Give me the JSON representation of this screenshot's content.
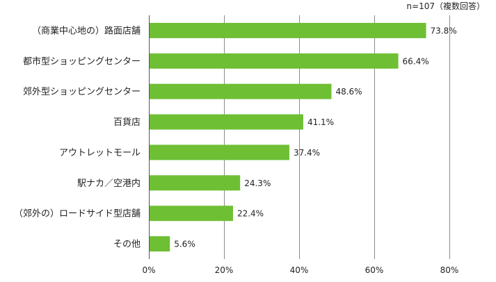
{
  "note": "n=107（複数回答）",
  "chart_data": {
    "type": "bar",
    "orientation": "horizontal",
    "categories": [
      "（商業中心地の）路面店舗",
      "都市型ショッピングセンター",
      "郊外型ショッピングセンター",
      "百貨店",
      "アウトレットモール",
      "駅ナカ／空港内",
      "（郊外の）ロードサイド型店舗",
      "その他"
    ],
    "values": [
      73.8,
      66.4,
      48.6,
      41.1,
      37.4,
      24.3,
      22.4,
      5.6
    ],
    "value_labels": [
      "73.8%",
      "66.4%",
      "48.6%",
      "41.1%",
      "37.4%",
      "24.3%",
      "22.4%",
      "5.6%"
    ],
    "xlim": [
      0,
      80
    ],
    "xticks": [
      0,
      20,
      40,
      60,
      80
    ],
    "xtick_labels": [
      "0%",
      "20%",
      "40%",
      "60%",
      "80%"
    ],
    "grid": true,
    "colors": {
      "bar": "#6fbf35",
      "grid": "#8a8a8a",
      "text": "#222222"
    }
  }
}
